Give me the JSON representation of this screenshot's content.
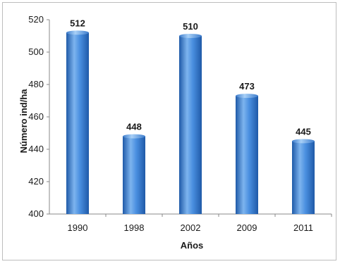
{
  "chart_data": {
    "type": "bar",
    "title": "",
    "xlabel": "Años",
    "ylabel": "Número ind/ha",
    "categories": [
      "1990",
      "1998",
      "2002",
      "2009",
      "2011"
    ],
    "values": [
      512,
      448,
      510,
      473,
      445
    ],
    "data_labels": [
      "512",
      "448",
      "510",
      "473",
      "445"
    ],
    "ylim": [
      400,
      520
    ],
    "yticks": [
      400,
      420,
      440,
      460,
      480,
      500,
      520
    ],
    "ytick_labels": [
      "400",
      "420",
      "440",
      "460",
      "480",
      "500",
      "520"
    ],
    "grid": false,
    "legend": "none",
    "bar_color": "#3f7fd3",
    "bar_color_dark": "#1f5aa8",
    "bar_color_light": "#7db4ee"
  }
}
